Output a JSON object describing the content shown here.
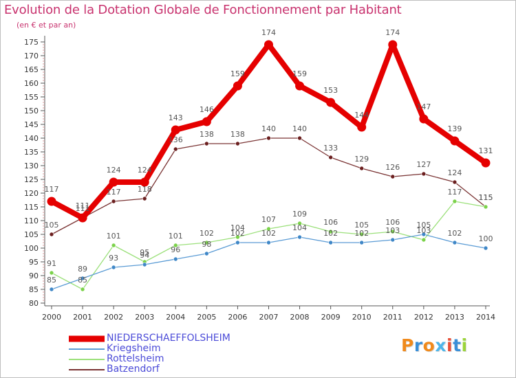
{
  "header": {
    "title": "Evolution de la Dotation Globale de Fonctionnement par Habitant",
    "subtitle": "(en € et par an)"
  },
  "logo": {
    "text": "Proxiti"
  },
  "chart_data": {
    "type": "line",
    "title": "Evolution de la Dotation Globale de Fonctionnement par Habitant",
    "subtitle": "(en € et par an)",
    "xlabel": "",
    "ylabel": "",
    "x": [
      "2000",
      "2001",
      "2002",
      "2003",
      "2004",
      "2005",
      "2006",
      "2007",
      "2008",
      "2009",
      "2010",
      "2011",
      "2012",
      "2013",
      "2014"
    ],
    "ylim": [
      80,
      175
    ],
    "yticks": [
      80,
      85,
      90,
      95,
      100,
      105,
      110,
      115,
      120,
      125,
      130,
      135,
      140,
      145,
      150,
      155,
      160,
      165,
      170,
      175
    ],
    "grid": false,
    "legend_position": "bottom-left",
    "series": [
      {
        "name": "NIEDERSCHAEFFOLSHEIM",
        "color": "#e50000",
        "marker_color": "#e50000",
        "values": [
          117,
          111,
          124,
          124,
          143,
          146,
          159,
          174,
          159,
          153,
          144,
          174,
          147,
          139,
          131
        ]
      },
      {
        "name": "Kriegsheim",
        "color": "#5a9bd5",
        "marker_color": "#3f87c7",
        "values": [
          85,
          89,
          93,
          94,
          96,
          98,
          102,
          102,
          104,
          102,
          102,
          103,
          105,
          102,
          100
        ]
      },
      {
        "name": "Rottelsheim",
        "color": "#9be07a",
        "marker_color": "#7bd24a",
        "values": [
          91,
          85,
          101,
          95,
          101,
          102,
          104,
          107,
          109,
          106,
          105,
          106,
          103,
          117,
          115
        ]
      },
      {
        "name": "Batzendorf",
        "color": "#7a3333",
        "marker_color": "#6b1f1f",
        "values": [
          105,
          111,
          117,
          118,
          136,
          138,
          138,
          140,
          140,
          133,
          129,
          126,
          127,
          124,
          115
        ]
      }
    ]
  }
}
